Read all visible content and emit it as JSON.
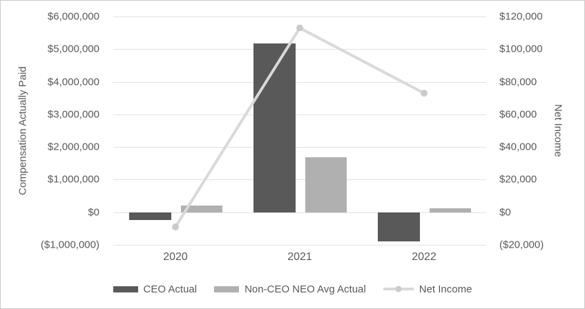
{
  "chart_data": {
    "type": "combo",
    "title": "",
    "categories": [
      "2020",
      "2021",
      "2022"
    ],
    "series": [
      {
        "name": "CEO Actual",
        "type": "bar",
        "axis": "left",
        "color": "#595959",
        "values": [
          -240000,
          5180000,
          -900000
        ]
      },
      {
        "name": "Non-CEO NEO Avg Actual",
        "type": "bar",
        "axis": "left",
        "color": "#b0b0b0",
        "values": [
          210000,
          1690000,
          130000
        ]
      },
      {
        "name": "Net Income",
        "type": "line",
        "axis": "right",
        "color": "#d9d9d9",
        "marker_color": "#cbcbcb",
        "values": [
          -9000,
          113000,
          73000
        ]
      }
    ],
    "left_axis": {
      "title": "Compensation Actually Paid",
      "min": -1000000,
      "max": 6000000,
      "tick_labels": [
        "$6,000,000",
        "$5,000,000",
        "$4,000,000",
        "$3,000,000",
        "$2,000,000",
        "$1,000,000",
        "$0",
        "($1,000,000)"
      ]
    },
    "right_axis": {
      "title": "Net Income",
      "min": -20000,
      "max": 120000,
      "tick_labels": [
        "$120,000",
        "$100,000",
        "$80,000",
        "$60,000",
        "$40,000",
        "$20,000",
        "$0",
        "($20,000)"
      ]
    },
    "grid": true,
    "legend_position": "bottom",
    "colors": {
      "text": "#595959",
      "gridline": "#e2e2e2",
      "border": "#c9c9c9",
      "background": "#ffffff"
    }
  }
}
